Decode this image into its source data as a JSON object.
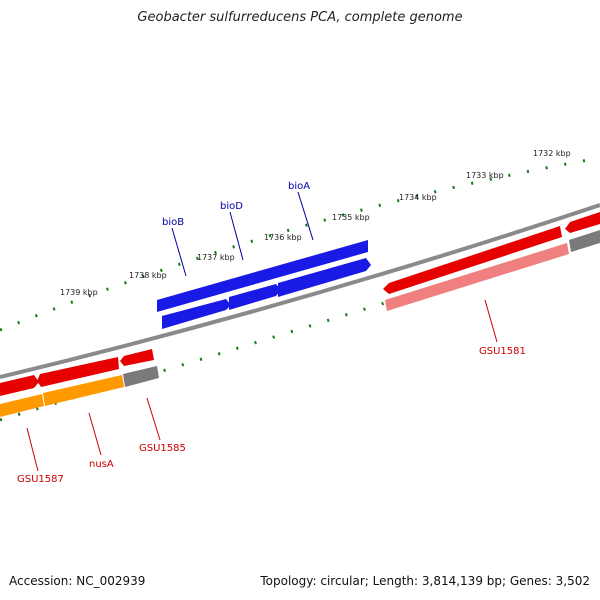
{
  "title": "Geobacter sulfurreducens PCA, complete genome",
  "footer": {
    "accession": "Accession: NC_002939",
    "summary": "Topology: circular; Length: 3,814,139 bp; Genes: 3,502"
  },
  "ruler": {
    "labels": [
      "1739 kbp",
      "1738 kbp",
      "1737 kbp",
      "1736 kbp",
      "1735 kbp",
      "1734 kbp",
      "1733 kbp",
      "1732 kbp"
    ],
    "color": "#1a7a1a"
  },
  "gene_labels": {
    "bioA": "bioA",
    "bioD": "bioD",
    "bioB": "bioB",
    "gsu1581": "GSU1581",
    "gsu1585": "GSU1585",
    "nusA": "nusA",
    "gsu1587": "GSU1587"
  },
  "colors": {
    "bio_genes": "#1a1ae6",
    "red_genes": "#e60000",
    "pink_genes": "#f08080",
    "orange_genes": "#ff9900",
    "gray_genes": "#7a7a7a",
    "backbone": "#8a8a8a",
    "bio_label": "#0000aa",
    "red_label": "#cc0000"
  }
}
